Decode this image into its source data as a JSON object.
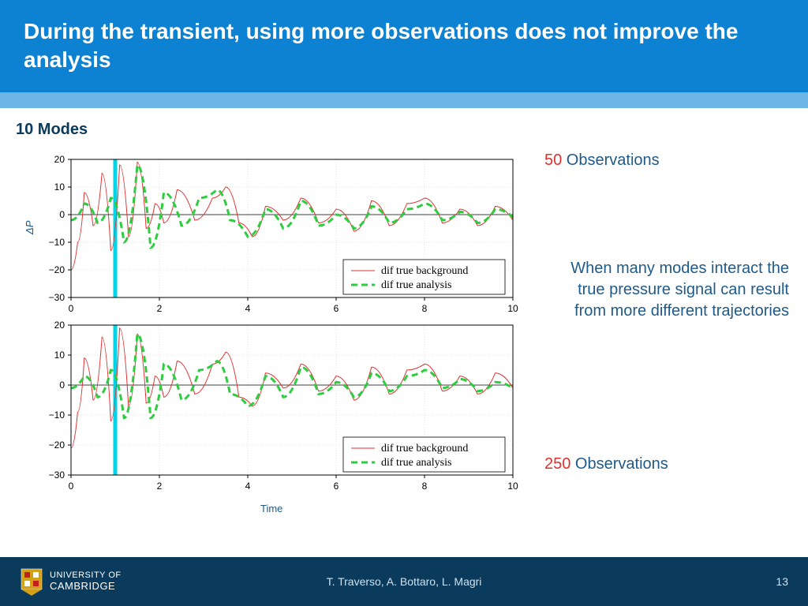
{
  "header": {
    "title": "During the transient, using more observations does not improve the analysis"
  },
  "modes_label": "10 Modes",
  "ylabel": "ΔP",
  "xlabel": "Time",
  "obs_top": {
    "num": "50",
    "word": " Observations"
  },
  "obs_bottom": {
    "num": "250",
    "word": " Observations"
  },
  "description": "When many modes interact the true pressure signal can result from more different trajectories",
  "chart_common": {
    "xlim": [
      0,
      10
    ],
    "ylim": [
      -30,
      20
    ],
    "xticks": [
      0,
      2,
      4,
      6,
      8,
      10
    ],
    "yticks": [
      -30,
      -20,
      -10,
      0,
      10,
      20
    ],
    "marker_x": 1.0,
    "legend": {
      "item1": "dif true background",
      "item2": "dif true analysis"
    },
    "colors": {
      "red": "#e03030",
      "green": "#2ecc40",
      "cyan": "#00d4e8",
      "grid": "#cccccc",
      "axis": "#000000"
    }
  },
  "chart1": {
    "red_series": [
      [
        0,
        -20
      ],
      [
        0.15,
        -10
      ],
      [
        0.3,
        8
      ],
      [
        0.5,
        -4
      ],
      [
        0.7,
        15
      ],
      [
        0.9,
        -13
      ],
      [
        1.1,
        18
      ],
      [
        1.3,
        -8
      ],
      [
        1.5,
        19
      ],
      [
        1.7,
        -5
      ],
      [
        1.9,
        4
      ],
      [
        2.1,
        -3
      ],
      [
        2.4,
        9
      ],
      [
        2.8,
        -2
      ],
      [
        3.2,
        6
      ],
      [
        3.5,
        10
      ],
      [
        3.8,
        -3
      ],
      [
        4.1,
        -8
      ],
      [
        4.4,
        3
      ],
      [
        4.8,
        -2
      ],
      [
        5.2,
        6
      ],
      [
        5.6,
        -3
      ],
      [
        6.0,
        2
      ],
      [
        6.4,
        -6
      ],
      [
        6.8,
        5
      ],
      [
        7.2,
        -4
      ],
      [
        7.6,
        4
      ],
      [
        8.0,
        6
      ],
      [
        8.4,
        -3
      ],
      [
        8.8,
        2
      ],
      [
        9.2,
        -4
      ],
      [
        9.6,
        3
      ],
      [
        10,
        -2
      ]
    ],
    "green_series": [
      [
        0,
        -2
      ],
      [
        0.3,
        4
      ],
      [
        0.6,
        -3
      ],
      [
        0.9,
        6
      ],
      [
        1.2,
        -10
      ],
      [
        1.5,
        18
      ],
      [
        1.8,
        -12
      ],
      [
        2.1,
        8
      ],
      [
        2.5,
        -4
      ],
      [
        2.9,
        6
      ],
      [
        3.3,
        9
      ],
      [
        3.6,
        -2
      ],
      [
        4.0,
        -8
      ],
      [
        4.4,
        2
      ],
      [
        4.8,
        -5
      ],
      [
        5.2,
        5
      ],
      [
        5.6,
        -4
      ],
      [
        6.0,
        0
      ],
      [
        6.4,
        -5
      ],
      [
        6.8,
        3
      ],
      [
        7.2,
        -3
      ],
      [
        7.6,
        2
      ],
      [
        8.0,
        4
      ],
      [
        8.4,
        -2
      ],
      [
        8.8,
        1
      ],
      [
        9.2,
        -3
      ],
      [
        9.6,
        2
      ],
      [
        10,
        -1
      ]
    ]
  },
  "chart2": {
    "red_series": [
      [
        0,
        -21
      ],
      [
        0.15,
        -9
      ],
      [
        0.3,
        9
      ],
      [
        0.5,
        -5
      ],
      [
        0.7,
        16
      ],
      [
        0.9,
        -12
      ],
      [
        1.1,
        19
      ],
      [
        1.3,
        -7
      ],
      [
        1.5,
        17
      ],
      [
        1.7,
        -6
      ],
      [
        1.9,
        3
      ],
      [
        2.1,
        -4
      ],
      [
        2.4,
        8
      ],
      [
        2.8,
        -3
      ],
      [
        3.2,
        7
      ],
      [
        3.5,
        11
      ],
      [
        3.8,
        -4
      ],
      [
        4.1,
        -7
      ],
      [
        4.4,
        4
      ],
      [
        4.8,
        -1
      ],
      [
        5.2,
        7
      ],
      [
        5.6,
        -2
      ],
      [
        6.0,
        3
      ],
      [
        6.4,
        -5
      ],
      [
        6.8,
        6
      ],
      [
        7.2,
        -3
      ],
      [
        7.6,
        5
      ],
      [
        8.0,
        7
      ],
      [
        8.4,
        -2
      ],
      [
        8.8,
        3
      ],
      [
        9.2,
        -3
      ],
      [
        9.6,
        4
      ],
      [
        10,
        -1
      ]
    ],
    "green_series": [
      [
        0,
        -1
      ],
      [
        0.3,
        3
      ],
      [
        0.6,
        -4
      ],
      [
        0.9,
        5
      ],
      [
        1.2,
        -11
      ],
      [
        1.5,
        17
      ],
      [
        1.8,
        -11
      ],
      [
        2.1,
        7
      ],
      [
        2.5,
        -5
      ],
      [
        2.9,
        5
      ],
      [
        3.3,
        8
      ],
      [
        3.6,
        -3
      ],
      [
        4.0,
        -7
      ],
      [
        4.4,
        3
      ],
      [
        4.8,
        -4
      ],
      [
        5.2,
        6
      ],
      [
        5.6,
        -3
      ],
      [
        6.0,
        1
      ],
      [
        6.4,
        -4
      ],
      [
        6.8,
        4
      ],
      [
        7.2,
        -2
      ],
      [
        7.6,
        3
      ],
      [
        8.0,
        5
      ],
      [
        8.4,
        -1
      ],
      [
        8.8,
        2
      ],
      [
        9.2,
        -2
      ],
      [
        9.6,
        1
      ],
      [
        10,
        -1
      ]
    ]
  },
  "footer": {
    "university_top": "UNIVERSITY OF",
    "university_bottom": "CAMBRIDGE",
    "authors": "T. Traverso, A. Bottaro, L. Magri",
    "page": "13"
  }
}
